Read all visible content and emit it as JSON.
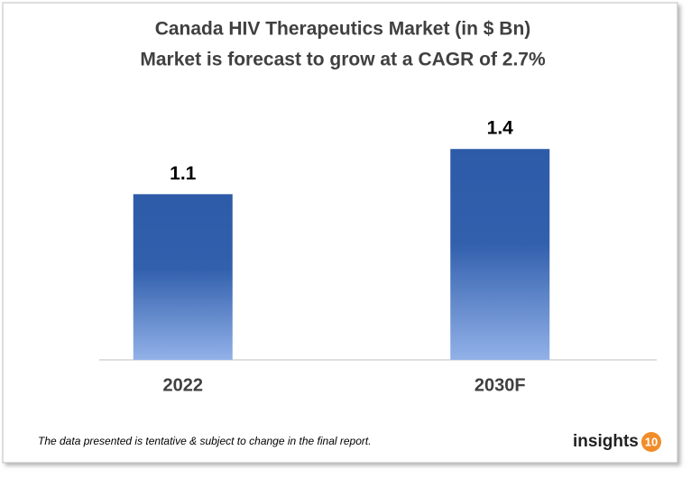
{
  "chart_data": {
    "type": "bar",
    "title": "Canada HIV Therapeutics Market (in $ Bn)",
    "subtitle": "Market is forecast to grow at a CAGR of 2.7%",
    "categories": [
      "2022",
      "2030F"
    ],
    "values": [
      1.1,
      1.4
    ],
    "color": "#2e5ba8",
    "footnote": "The data presented is tentative & subject to change in the final report.",
    "logo": {
      "text": "insights",
      "badge": "10"
    }
  }
}
